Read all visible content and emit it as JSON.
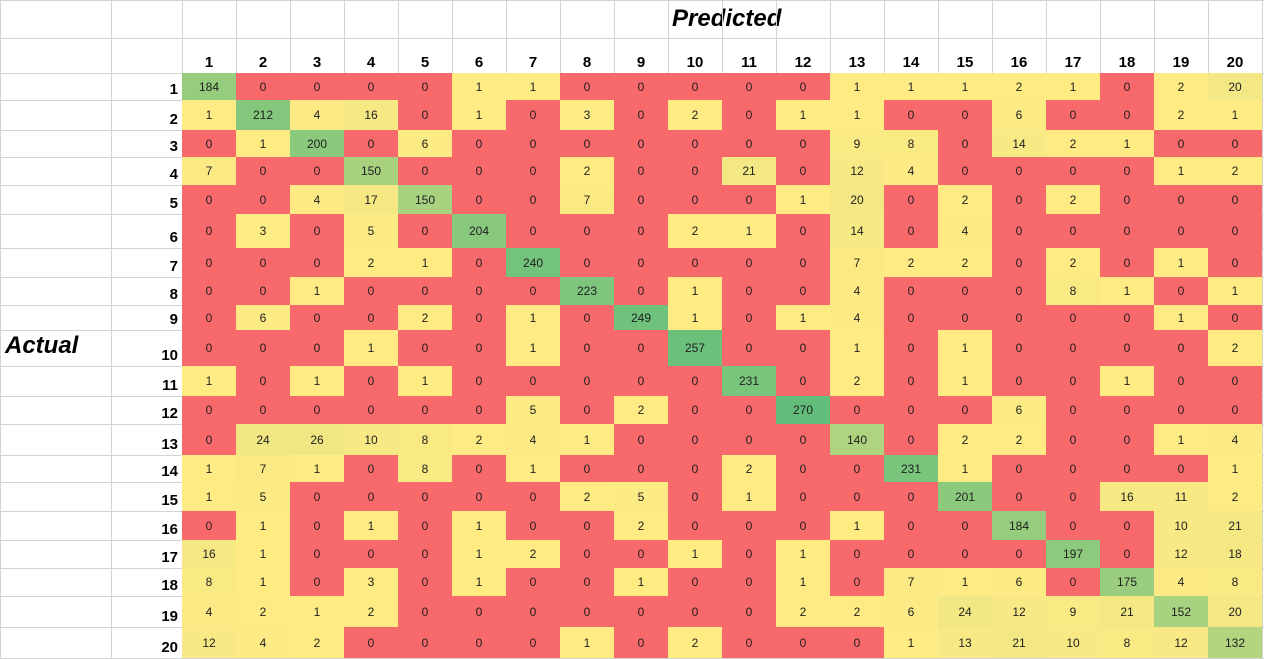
{
  "chart_data": {
    "type": "heatmap",
    "title": "",
    "xlabel": "Predicted",
    "ylabel": "Actual",
    "x_categories": [
      "1",
      "2",
      "3",
      "4",
      "5",
      "6",
      "7",
      "8",
      "9",
      "10",
      "11",
      "12",
      "13",
      "14",
      "15",
      "16",
      "17",
      "18",
      "19",
      "20"
    ],
    "y_categories": [
      "1",
      "2",
      "3",
      "4",
      "5",
      "6",
      "7",
      "8",
      "9",
      "10",
      "11",
      "12",
      "13",
      "14",
      "15",
      "16",
      "17",
      "18",
      "19",
      "20"
    ],
    "values": [
      [
        184,
        0,
        0,
        0,
        0,
        1,
        1,
        0,
        0,
        0,
        0,
        0,
        1,
        1,
        1,
        2,
        1,
        0,
        2,
        20
      ],
      [
        1,
        212,
        4,
        16,
        0,
        1,
        0,
        3,
        0,
        2,
        0,
        1,
        1,
        0,
        0,
        6,
        0,
        0,
        2,
        1
      ],
      [
        0,
        1,
        200,
        0,
        6,
        0,
        0,
        0,
        0,
        0,
        0,
        0,
        9,
        8,
        0,
        14,
        2,
        1,
        0,
        0
      ],
      [
        7,
        0,
        0,
        150,
        0,
        0,
        0,
        2,
        0,
        0,
        21,
        0,
        12,
        4,
        0,
        0,
        0,
        0,
        1,
        2
      ],
      [
        0,
        0,
        4,
        17,
        150,
        0,
        0,
        7,
        0,
        0,
        0,
        1,
        20,
        0,
        2,
        0,
        2,
        0,
        0,
        0
      ],
      [
        0,
        3,
        0,
        5,
        0,
        204,
        0,
        0,
        0,
        2,
        1,
        0,
        14,
        0,
        4,
        0,
        0,
        0,
        0,
        0
      ],
      [
        0,
        0,
        0,
        2,
        1,
        0,
        240,
        0,
        0,
        0,
        0,
        0,
        7,
        2,
        2,
        0,
        2,
        0,
        1,
        0
      ],
      [
        0,
        0,
        1,
        0,
        0,
        0,
        0,
        223,
        0,
        1,
        0,
        0,
        4,
        0,
        0,
        0,
        8,
        1,
        0,
        1
      ],
      [
        0,
        6,
        0,
        0,
        2,
        0,
        1,
        0,
        249,
        1,
        0,
        1,
        4,
        0,
        0,
        0,
        0,
        0,
        1,
        0
      ],
      [
        0,
        0,
        0,
        1,
        0,
        0,
        1,
        0,
        0,
        257,
        0,
        0,
        1,
        0,
        1,
        0,
        0,
        0,
        0,
        2
      ],
      [
        1,
        0,
        1,
        0,
        1,
        0,
        0,
        0,
        0,
        0,
        231,
        0,
        2,
        0,
        1,
        0,
        0,
        1,
        0,
        0
      ],
      [
        0,
        0,
        0,
        0,
        0,
        0,
        5,
        0,
        2,
        0,
        0,
        270,
        0,
        0,
        0,
        6,
        0,
        0,
        0,
        0
      ],
      [
        0,
        24,
        26,
        10,
        8,
        2,
        4,
        1,
        0,
        0,
        0,
        0,
        140,
        0,
        2,
        2,
        0,
        0,
        1,
        4
      ],
      [
        1,
        7,
        1,
        0,
        8,
        0,
        1,
        0,
        0,
        0,
        2,
        0,
        0,
        231,
        1,
        0,
        0,
        0,
        0,
        1
      ],
      [
        1,
        5,
        0,
        0,
        0,
        0,
        0,
        2,
        5,
        0,
        1,
        0,
        0,
        0,
        201,
        0,
        0,
        16,
        11,
        2
      ],
      [
        0,
        1,
        0,
        1,
        0,
        1,
        0,
        0,
        2,
        0,
        0,
        0,
        1,
        0,
        0,
        184,
        0,
        0,
        10,
        21
      ],
      [
        16,
        1,
        0,
        0,
        0,
        1,
        2,
        0,
        0,
        1,
        0,
        1,
        0,
        0,
        0,
        0,
        197,
        0,
        12,
        18
      ],
      [
        8,
        1,
        0,
        3,
        0,
        1,
        0,
        0,
        1,
        0,
        0,
        1,
        0,
        7,
        1,
        6,
        0,
        175,
        4,
        8
      ],
      [
        4,
        2,
        1,
        2,
        0,
        0,
        0,
        0,
        0,
        0,
        0,
        2,
        2,
        6,
        24,
        12,
        9,
        21,
        152,
        20
      ],
      [
        12,
        4,
        2,
        0,
        0,
        0,
        0,
        1,
        0,
        2,
        0,
        0,
        0,
        1,
        13,
        21,
        10,
        8,
        12,
        132
      ]
    ],
    "color_scale": {
      "low": "#f8696b",
      "mid": "#ffeb84",
      "high": "#63be7b"
    },
    "legend": "none",
    "grid": true
  }
}
